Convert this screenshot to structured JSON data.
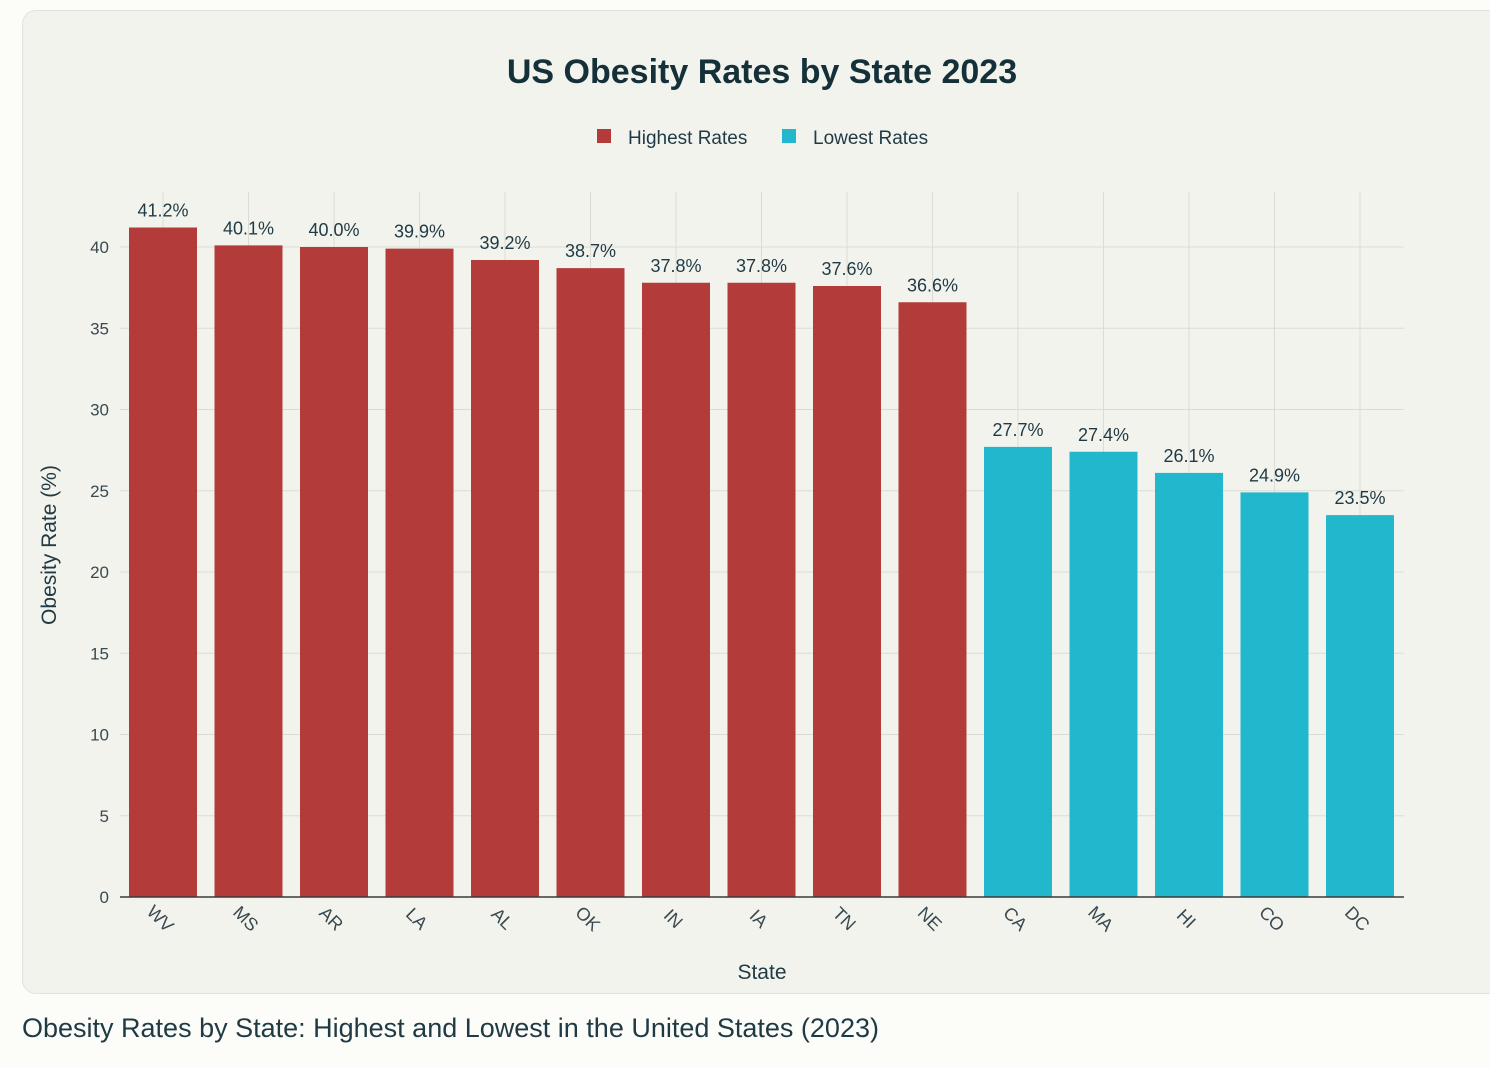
{
  "caption": "Obesity Rates by State: Highest and Lowest in the United States (2023)",
  "chart_data": {
    "type": "bar",
    "title": "US Obesity Rates by State 2023",
    "xlabel": "State",
    "ylabel": "Obesity Rate (%)",
    "ylim": [
      0,
      42.5
    ],
    "yticks": [
      0,
      5,
      10,
      15,
      20,
      25,
      30,
      35,
      40
    ],
    "grid": true,
    "legend_position": "top-center",
    "legend": [
      {
        "name": "Highest Rates",
        "color": "#b33c3a"
      },
      {
        "name": "Lowest Rates",
        "color": "#21b8cd"
      }
    ],
    "categories": [
      "WV",
      "MS",
      "AR",
      "LA",
      "AL",
      "OK",
      "IN",
      "IA",
      "TN",
      "NE",
      "CA",
      "MA",
      "HI",
      "CO",
      "DC"
    ],
    "values": [
      41.2,
      40.1,
      40.0,
      39.9,
      39.2,
      38.7,
      37.8,
      37.8,
      37.6,
      36.6,
      27.7,
      27.4,
      26.1,
      24.9,
      23.5
    ],
    "data_labels": [
      "41.2%",
      "40.1%",
      "40.0%",
      "39.9%",
      "39.2%",
      "38.7%",
      "37.8%",
      "37.8%",
      "37.6%",
      "36.6%",
      "27.7%",
      "27.4%",
      "26.1%",
      "24.9%",
      "23.5%"
    ],
    "groups": [
      "Highest Rates",
      "Highest Rates",
      "Highest Rates",
      "Highest Rates",
      "Highest Rates",
      "Highest Rates",
      "Highest Rates",
      "Highest Rates",
      "Highest Rates",
      "Highest Rates",
      "Lowest Rates",
      "Lowest Rates",
      "Lowest Rates",
      "Lowest Rates",
      "Lowest Rates"
    ]
  }
}
